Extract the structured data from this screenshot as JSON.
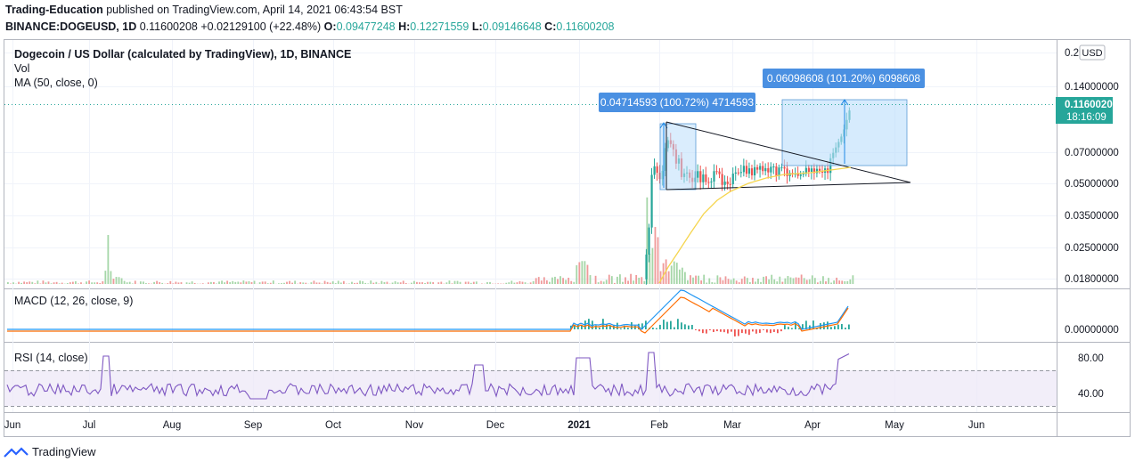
{
  "header": {
    "author": "Trading-Education",
    "published": "published on TradingView.com, April 14, 2021 06:43:54 BST",
    "symbol": "BINANCE:DOGEUSD, 1D",
    "last": "0.11600208",
    "change": "+0.02129100 (+22.48%)",
    "o_label": "O:",
    "o": "0.09477248",
    "h_label": "H:",
    "h": "0.12271559",
    "l_label": "L:",
    "l": "0.09146648",
    "c_label": "C:",
    "c": "0.11600208"
  },
  "legend": {
    "title": "Dogecoin / US Dollar (calculated by TradingView), 1D, BINANCE",
    "vol": "Vol",
    "ma": "MA (50, close, 0)",
    "macd": "MACD (12, 26, close, 9)",
    "rsi": "RSI (14, close)"
  },
  "currency_button": "USD",
  "price_badge": {
    "value": "0.11600208",
    "countdown": "18:16:09"
  },
  "annotations": {
    "range1": "0.04714593 (100.72%) 4714593",
    "range2": "0.06098608 (101.20%) 6098608"
  },
  "footer": {
    "brand": "TradingView"
  },
  "colors": {
    "up": "#26a69a",
    "down": "#ef5350",
    "accent": "#2962ff",
    "ma": "#f5d54e",
    "macd": "#2196f3",
    "signal": "#ff6d00",
    "rsi": "#7e57c2",
    "range_label": "#4a90e2"
  },
  "chart_data": [
    {
      "type": "candlestick",
      "title": "Dogecoin / US Dollar (calculated by TradingView), 1D, BINANCE",
      "log_scale": true,
      "y_ticks": [
        "0.2",
        "0.14000000",
        "0.07000000",
        "0.05000000",
        "0.03500000",
        "0.02500000",
        "0.01800000"
      ],
      "x_ticks": [
        "Jun",
        "Jul",
        "Aug",
        "Sep",
        "Oct",
        "Nov",
        "Dec",
        "2021",
        "Feb",
        "Mar",
        "Apr",
        "May",
        "Jun"
      ],
      "last_price": 0.11600208,
      "series": [
        {
          "name": "Dogecoin / US Dollar",
          "x": [
            "2021-01-28",
            "2021-02-04",
            "2021-02-07",
            "2021-02-14",
            "2021-02-23",
            "2021-03-05",
            "2021-03-15",
            "2021-03-25",
            "2021-04-05",
            "2021-04-14"
          ],
          "values": [
            0.035,
            0.07,
            0.075,
            0.065,
            0.048,
            0.052,
            0.06,
            0.053,
            0.06,
            0.116
          ]
        },
        {
          "name": "MA (50, close, 0)",
          "x": [
            "2021-02-01",
            "2021-02-15",
            "2021-03-01",
            "2021-03-15",
            "2021-04-01",
            "2021-04-14"
          ],
          "values": [
            0.015,
            0.03,
            0.045,
            0.05,
            0.055,
            0.058
          ]
        }
      ],
      "grid": true
    },
    {
      "type": "line",
      "title": "MACD (12, 26, close, 9)",
      "y_ticks": [
        "0.00000000"
      ]
    },
    {
      "type": "line",
      "title": "RSI (14, close)",
      "y_ticks": [
        "80.00",
        "40.00"
      ],
      "bands": [
        30,
        70
      ],
      "ylim": [
        30,
        80
      ]
    }
  ]
}
